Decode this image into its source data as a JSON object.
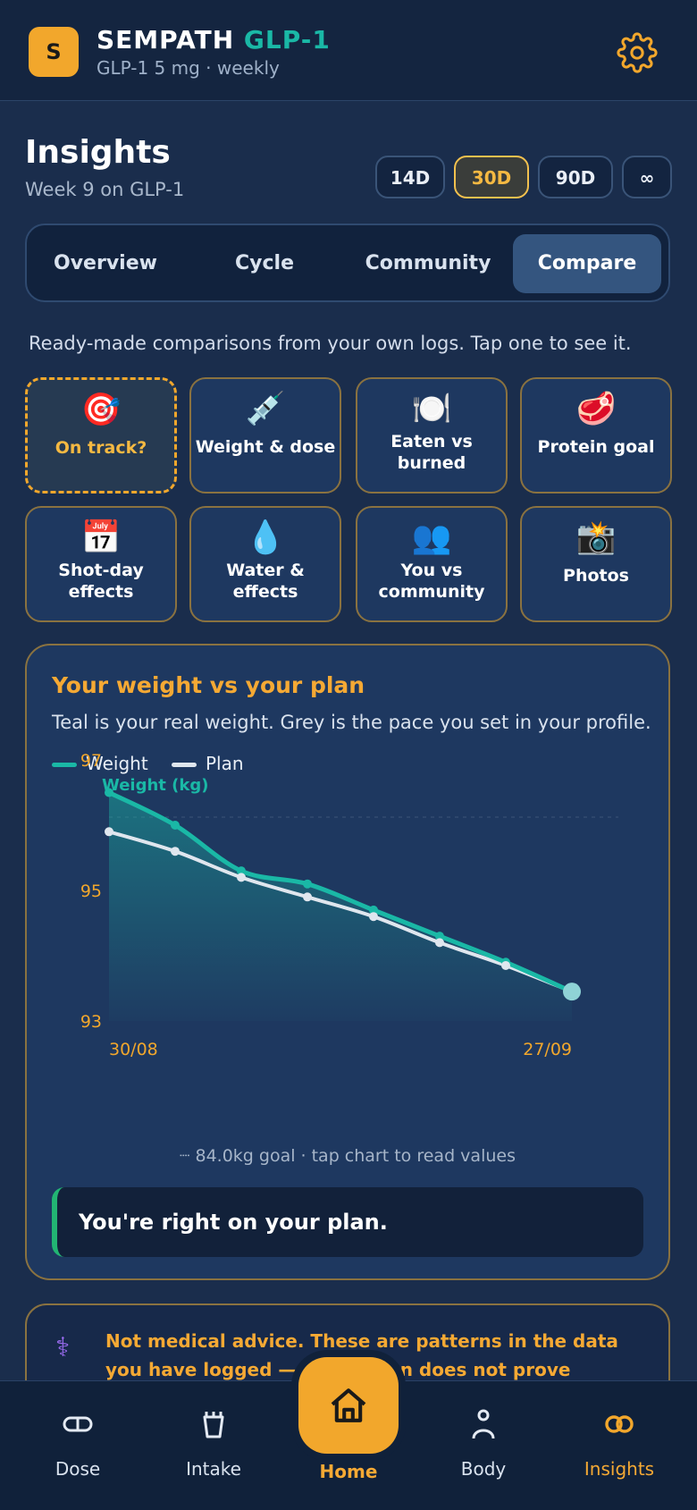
{
  "header": {
    "logo_letter": "S",
    "title_main": "SEMPATH",
    "title_accent": "GLP-1",
    "subtitle": "GLP-1 5 mg · weekly"
  },
  "insights": {
    "title": "Insights",
    "subtitle": "Week 9 on GLP-1",
    "ranges": [
      "14D",
      "30D",
      "90D",
      "∞"
    ],
    "selected_range": "30D"
  },
  "tabs": [
    "Overview",
    "Cycle",
    "Community",
    "Compare"
  ],
  "selected_tab": "Compare",
  "helper_text": "Ready-made comparisons from your own logs. Tap one to see it.",
  "tiles": [
    {
      "emoji": "🎯",
      "label": "On track?"
    },
    {
      "emoji": "💉",
      "label": "Weight & dose"
    },
    {
      "emoji": "🍽️",
      "label": "Eaten vs burned"
    },
    {
      "emoji": "🥩",
      "label": "Protein goal"
    },
    {
      "emoji": "📅",
      "label": "Shot-day effects"
    },
    {
      "emoji": "💧",
      "label": "Water & effects"
    },
    {
      "emoji": "👥",
      "label": "You vs community"
    },
    {
      "emoji": "📸",
      "label": "Photos"
    }
  ],
  "card": {
    "title": "Your weight vs your plan",
    "subtitle": "Teal is your real weight. Grey is the pace you set in your profile.",
    "legend_weight": "Weight",
    "legend_plan": "Plan",
    "y_axis_title": "Weight (kg)",
    "note": "┈ 84.0kg goal · tap chart to read values",
    "verdict": "You're right on your plan."
  },
  "chart_data": {
    "type": "line",
    "ylabel": "Weight (kg)",
    "ylim": [
      93,
      97
    ],
    "y_ticks": [
      "97",
      "95",
      "93"
    ],
    "x_tick_labels": [
      "30/08",
      "27/09"
    ],
    "series": [
      {
        "name": "Weight",
        "color": "#1ab8a6",
        "x": [
          0,
          1,
          2,
          3,
          4,
          5,
          6,
          7
        ],
        "values": [
          96.5,
          96.0,
          95.3,
          95.1,
          94.7,
          94.3,
          93.9,
          93.45
        ]
      },
      {
        "name": "Plan",
        "color": "#dfe6ee",
        "x": [
          0,
          1,
          2,
          3,
          4,
          5,
          6,
          7
        ],
        "values": [
          95.9,
          95.6,
          95.2,
          94.9,
          94.6,
          94.2,
          93.85,
          93.45
        ]
      }
    ],
    "legend_position": "top-left",
    "grid": false
  },
  "disclaimer": {
    "text": "Not medical advice. These are patterns in the data you have logged — correlation does not prove cause. Use them as questions to raise with your doctor, not as a basis for changes."
  },
  "nav": {
    "items": [
      "Dose",
      "Intake",
      "Home",
      "Body",
      "Insights"
    ],
    "active": "Insights"
  },
  "colors": {
    "accent": "#f2a72c",
    "teal": "#1ab8a6",
    "background": "#1a2d4c"
  }
}
